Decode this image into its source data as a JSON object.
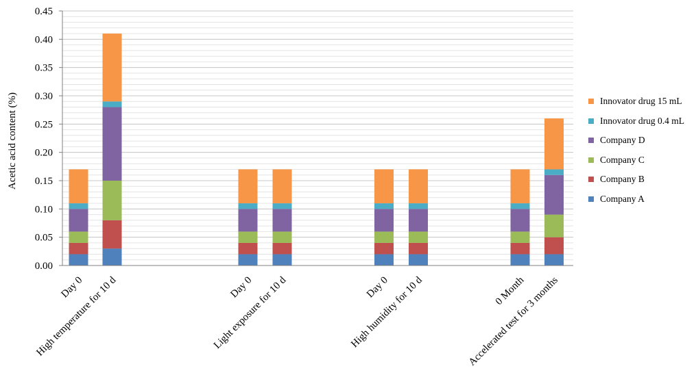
{
  "chart_data": {
    "type": "bar",
    "stacked": true,
    "ylabel": "Acetic acid content (%)",
    "xlabel": "",
    "ylim": [
      0,
      0.45
    ],
    "ytick_step": 0.05,
    "yticks": [
      "0.00",
      "0.05",
      "0.10",
      "0.15",
      "0.20",
      "0.25",
      "0.30",
      "0.35",
      "0.40",
      "0.45"
    ],
    "grid": true,
    "legend_position": "right",
    "categories": [
      "Day 0",
      "High temperature for 10 d",
      "Day 0",
      "Light exposure for 10 d",
      "Day 0",
      "High humidity for 10 d",
      "0 Month",
      "Accelerated test for 3 months"
    ],
    "series": [
      {
        "name": "Company A",
        "color": "#4f81bd",
        "values": [
          0.02,
          0.03,
          0.02,
          0.02,
          0.02,
          0.02,
          0.02,
          0.02
        ]
      },
      {
        "name": "Company B",
        "color": "#c0504d",
        "values": [
          0.02,
          0.05,
          0.02,
          0.02,
          0.02,
          0.02,
          0.02,
          0.03
        ]
      },
      {
        "name": "Company C",
        "color": "#9bbb59",
        "values": [
          0.02,
          0.07,
          0.02,
          0.02,
          0.02,
          0.02,
          0.02,
          0.04
        ]
      },
      {
        "name": "Company D",
        "color": "#8064a2",
        "values": [
          0.04,
          0.13,
          0.04,
          0.04,
          0.04,
          0.04,
          0.04,
          0.07
        ]
      },
      {
        "name": "Innovator drug 0.4 mL",
        "color": "#4bacc6",
        "values": [
          0.01,
          0.01,
          0.01,
          0.01,
          0.01,
          0.01,
          0.01,
          0.01
        ]
      },
      {
        "name": "Innovator drug 15 mL",
        "color": "#f79646",
        "values": [
          0.06,
          0.12,
          0.06,
          0.06,
          0.06,
          0.06,
          0.06,
          0.09
        ]
      }
    ]
  }
}
